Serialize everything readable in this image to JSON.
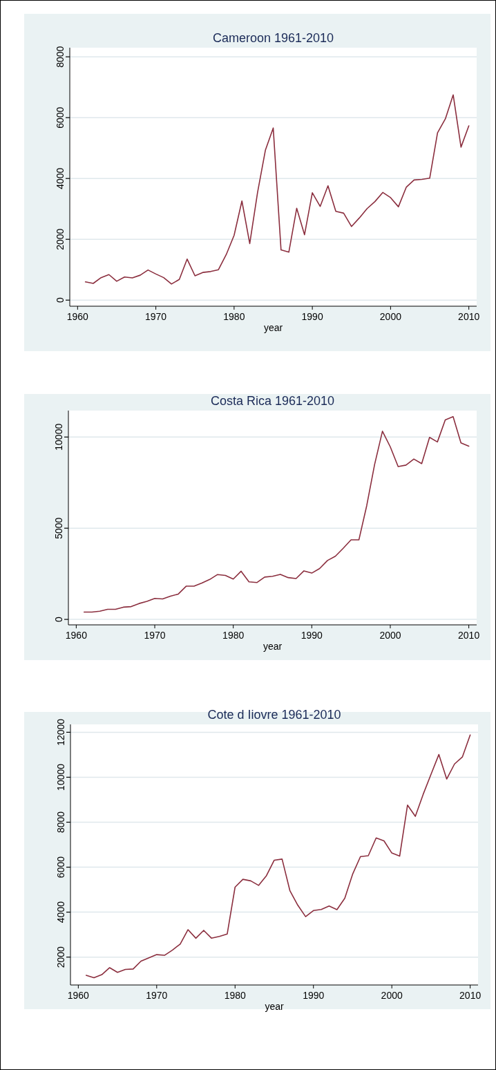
{
  "chart_data": [
    {
      "type": "line",
      "title": "Cameroon 1961-2010",
      "xlabel": "year",
      "grid": "y",
      "xlim": [
        1959,
        2011
      ],
      "ylim": [
        -200,
        8300
      ],
      "xticks": [
        1960,
        1970,
        1980,
        1990,
        2000,
        2010
      ],
      "yticks": [
        0,
        2000,
        4000,
        6000,
        8000
      ],
      "x": [
        1961,
        1962,
        1963,
        1964,
        1965,
        1966,
        1967,
        1968,
        1969,
        1970,
        1971,
        1972,
        1973,
        1974,
        1975,
        1976,
        1977,
        1978,
        1979,
        1980,
        1981,
        1982,
        1983,
        1984,
        1985,
        1986,
        1987,
        1988,
        1989,
        1990,
        1991,
        1992,
        1993,
        1994,
        1995,
        1996,
        1997,
        1998,
        1999,
        2000,
        2001,
        2002,
        2003,
        2004,
        2005,
        2006,
        2007,
        2008,
        2009,
        2010
      ],
      "series": [
        {
          "color": "#8b2e3e",
          "values": [
            600,
            550,
            740,
            840,
            620,
            760,
            730,
            820,
            990,
            860,
            740,
            530,
            680,
            1350,
            800,
            910,
            940,
            1000,
            1500,
            2130,
            3260,
            1860,
            3540,
            4930,
            5660,
            1650,
            1580,
            3020,
            2150,
            3530,
            3080,
            3760,
            2920,
            2860,
            2420,
            2700,
            3010,
            3240,
            3540,
            3370,
            3070,
            3710,
            3950,
            3970,
            4010,
            5500,
            5960,
            6750,
            5030,
            5730
          ]
        }
      ]
    },
    {
      "type": "line",
      "title": "Costa Rica 1961-2010",
      "xlabel": "year",
      "grid": "y",
      "xlim": [
        1959,
        2011
      ],
      "ylim": [
        -300,
        11450
      ],
      "xticks": [
        1960,
        1970,
        1980,
        1990,
        2000,
        2010
      ],
      "yticks": [
        0,
        5000,
        10000
      ],
      "x": [
        1961,
        1962,
        1963,
        1964,
        1965,
        1966,
        1967,
        1968,
        1969,
        1970,
        1971,
        1972,
        1973,
        1974,
        1975,
        1976,
        1977,
        1978,
        1979,
        1980,
        1981,
        1982,
        1983,
        1984,
        1985,
        1986,
        1987,
        1988,
        1989,
        1990,
        1991,
        1992,
        1993,
        1994,
        1995,
        1996,
        1997,
        1998,
        1999,
        2000,
        2001,
        2002,
        2003,
        2004,
        2005,
        2006,
        2007,
        2008,
        2009,
        2010
      ],
      "series": [
        {
          "color": "#8b2e3e",
          "values": [
            400,
            400,
            450,
            550,
            550,
            670,
            700,
            870,
            990,
            1150,
            1120,
            1270,
            1390,
            1820,
            1820,
            1990,
            2190,
            2460,
            2410,
            2210,
            2640,
            2060,
            2020,
            2320,
            2360,
            2470,
            2290,
            2240,
            2660,
            2540,
            2790,
            3230,
            3460,
            3900,
            4360,
            4360,
            6240,
            8490,
            10320,
            9460,
            8380,
            8460,
            8790,
            8540,
            9980,
            9730,
            10940,
            11120,
            9680,
            9500
          ]
        }
      ]
    },
    {
      "type": "line",
      "title": "Cote d Iiovre 1961-2010",
      "xlabel": "year",
      "grid": "y",
      "xlim": [
        1959,
        2011
      ],
      "ylim": [
        760,
        12350
      ],
      "xticks": [
        1960,
        1970,
        1980,
        1990,
        2000,
        2010
      ],
      "yticks": [
        2000,
        4000,
        6000,
        8000,
        10000,
        12000
      ],
      "x": [
        1961,
        1962,
        1963,
        1964,
        1965,
        1966,
        1967,
        1968,
        1969,
        1970,
        1971,
        1972,
        1973,
        1974,
        1975,
        1976,
        1977,
        1978,
        1979,
        1980,
        1981,
        1982,
        1983,
        1984,
        1985,
        1986,
        1987,
        1988,
        1989,
        1990,
        1991,
        1992,
        1993,
        1994,
        1995,
        1996,
        1997,
        1998,
        1999,
        2000,
        2001,
        2002,
        2003,
        2004,
        2005,
        2006,
        2007,
        2008,
        2009,
        2010
      ],
      "series": [
        {
          "color": "#8b2e3e",
          "values": [
            1190,
            1080,
            1220,
            1530,
            1320,
            1450,
            1470,
            1820,
            1970,
            2110,
            2080,
            2310,
            2580,
            3220,
            2840,
            3190,
            2840,
            2920,
            3030,
            5110,
            5460,
            5390,
            5190,
            5620,
            6310,
            6360,
            4950,
            4310,
            3800,
            4070,
            4120,
            4270,
            4110,
            4620,
            5690,
            6470,
            6510,
            7300,
            7170,
            6630,
            6490,
            8760,
            8260,
            9240,
            10130,
            11010,
            9920,
            10590,
            10900,
            11880
          ]
        }
      ]
    }
  ]
}
